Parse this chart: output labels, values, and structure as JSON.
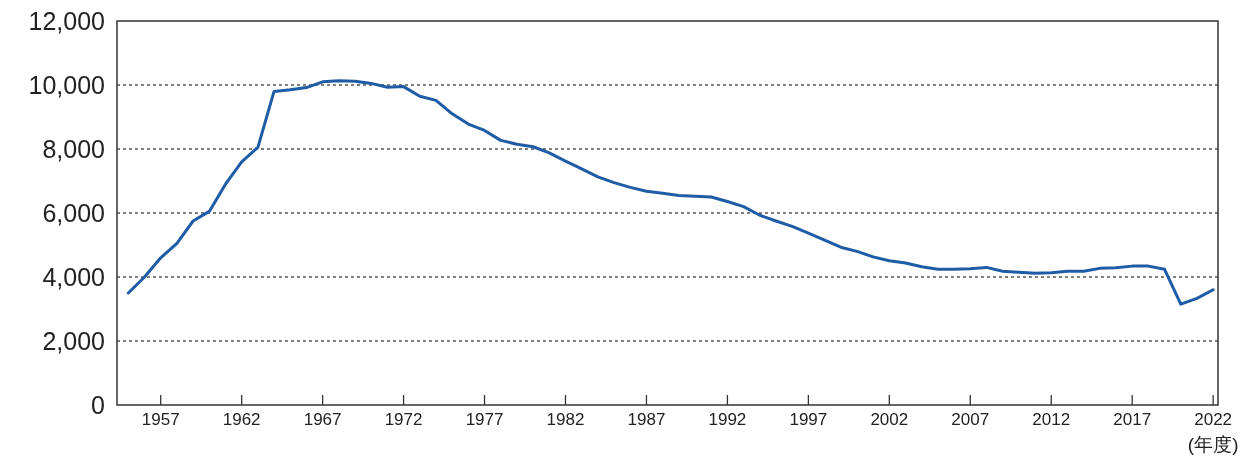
{
  "chart_data": {
    "type": "line",
    "xlabel": "(年度)",
    "color": "#1f5ca6",
    "grid": "y",
    "x": [
      1955,
      1956,
      1957,
      1958,
      1959,
      1960,
      1961,
      1962,
      1963,
      1964,
      1965,
      1966,
      1967,
      1968,
      1969,
      1970,
      1971,
      1972,
      1973,
      1974,
      1975,
      1976,
      1977,
      1978,
      1979,
      1980,
      1981,
      1982,
      1983,
      1984,
      1985,
      1986,
      1987,
      1988,
      1989,
      1990,
      1991,
      1992,
      1993,
      1994,
      1995,
      1996,
      1997,
      1998,
      1999,
      2000,
      2001,
      2002,
      2003,
      2004,
      2005,
      2006,
      2007,
      2008,
      2009,
      2010,
      2011,
      2012,
      2013,
      2014,
      2015,
      2016,
      2017,
      2018,
      2019,
      2020,
      2021,
      2022
    ],
    "values": [
      3500,
      4000,
      4600,
      5050,
      5750,
      6050,
      6900,
      7600,
      8050,
      9800,
      9850,
      9920,
      10100,
      10130,
      10120,
      10050,
      9930,
      9950,
      9650,
      9520,
      9100,
      8780,
      8580,
      8270,
      8150,
      8070,
      7880,
      7620,
      7380,
      7130,
      6950,
      6800,
      6680,
      6620,
      6550,
      6520,
      6500,
      6360,
      6200,
      5930,
      5750,
      5580,
      5370,
      5150,
      4930,
      4800,
      4630,
      4510,
      4440,
      4320,
      4240,
      4240,
      4260,
      4300,
      4180,
      4150,
      4120,
      4130,
      4180,
      4180,
      4270,
      4290,
      4340,
      4340,
      4240,
      3150,
      3330,
      3600
    ],
    "xlim": [
      1954.3,
      2022.3
    ],
    "ylim": [
      0,
      12000
    ],
    "xticks": [
      1957,
      1962,
      1967,
      1972,
      1977,
      1982,
      1987,
      1992,
      1997,
      2002,
      2007,
      2012,
      2017,
      2022
    ],
    "yticks": [
      0,
      {
        "value": 2000,
        "label": "2,000"
      },
      {
        "value": 4000,
        "label": "4,000"
      },
      {
        "value": 6000,
        "label": "6,000"
      },
      {
        "value": 8000,
        "label": "8,000"
      },
      {
        "value": 10000,
        "label": "10,000"
      },
      {
        "value": 12000,
        "label": "12,000"
      }
    ]
  }
}
